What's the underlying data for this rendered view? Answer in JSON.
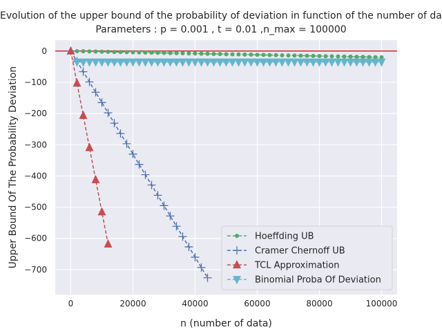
{
  "chart_data": {
    "type": "line",
    "title_line1": "Evolution of the upper bound of the probability of deviation in function of the number of data",
    "title_line2": "Parameters : p =  0.001 , t = 0.01 ,n_max = 100000",
    "xlabel": "n (number of data)",
    "ylabel": "Upper Bound Of The Probability Deviation",
    "xlim": [
      -5000,
      105000
    ],
    "ylim": [
      -780,
      35
    ],
    "x_ticks": [
      0,
      20000,
      40000,
      60000,
      80000,
      100000
    ],
    "y_ticks": [
      0,
      -100,
      -200,
      -300,
      -400,
      -500,
      -600,
      -700
    ],
    "grid": true,
    "legend_position": "lower-right",
    "reference_line": {
      "y": 0,
      "color": "#d62728"
    },
    "series": [
      {
        "name": "Hoeffding UB",
        "color": "#55a868",
        "marker": "dot",
        "points": [
          [
            0,
            0
          ],
          [
            2000,
            -0.4
          ],
          [
            4000,
            -0.8
          ],
          [
            6000,
            -1.2
          ],
          [
            8000,
            -1.6
          ],
          [
            10000,
            -2
          ],
          [
            12000,
            -2.4
          ],
          [
            14000,
            -2.8
          ],
          [
            16000,
            -3.2
          ],
          [
            18000,
            -3.6
          ],
          [
            20000,
            -4
          ],
          [
            22000,
            -4.4
          ],
          [
            24000,
            -4.8
          ],
          [
            26000,
            -5.2
          ],
          [
            28000,
            -5.6
          ],
          [
            30000,
            -6
          ],
          [
            32000,
            -6.4
          ],
          [
            34000,
            -6.8
          ],
          [
            36000,
            -7.2
          ],
          [
            38000,
            -7.6
          ],
          [
            40000,
            -8
          ],
          [
            42000,
            -8.4
          ],
          [
            44000,
            -8.8
          ],
          [
            46000,
            -9.2
          ],
          [
            48000,
            -9.6
          ],
          [
            50000,
            -10
          ],
          [
            52000,
            -10.4
          ],
          [
            54000,
            -10.8
          ],
          [
            56000,
            -11.2
          ],
          [
            58000,
            -11.6
          ],
          [
            60000,
            -12
          ],
          [
            62000,
            -12.4
          ],
          [
            64000,
            -12.8
          ],
          [
            66000,
            -13.2
          ],
          [
            68000,
            -13.6
          ],
          [
            70000,
            -14
          ],
          [
            72000,
            -14.4
          ],
          [
            74000,
            -14.8
          ],
          [
            76000,
            -15.2
          ],
          [
            78000,
            -15.6
          ],
          [
            80000,
            -16
          ],
          [
            82000,
            -16.4
          ],
          [
            84000,
            -16.8
          ],
          [
            86000,
            -17.2
          ],
          [
            88000,
            -17.6
          ],
          [
            90000,
            -18
          ],
          [
            92000,
            -18.4
          ],
          [
            94000,
            -18.8
          ],
          [
            96000,
            -19.2
          ],
          [
            98000,
            -19.6
          ],
          [
            100000,
            -20
          ]
        ]
      },
      {
        "name": "Cramer Chernoff UB",
        "color": "#4c72b0",
        "marker": "plus",
        "points": [
          [
            0,
            0
          ],
          [
            2000,
            -33
          ],
          [
            4000,
            -66
          ],
          [
            6000,
            -99
          ],
          [
            8000,
            -132
          ],
          [
            10000,
            -165
          ],
          [
            12000,
            -198
          ],
          [
            14000,
            -231
          ],
          [
            16000,
            -264
          ],
          [
            18000,
            -297
          ],
          [
            20000,
            -330
          ],
          [
            22000,
            -363
          ],
          [
            24000,
            -396
          ],
          [
            26000,
            -429
          ],
          [
            28000,
            -462
          ],
          [
            30000,
            -495
          ],
          [
            32000,
            -528
          ],
          [
            34000,
            -561
          ],
          [
            36000,
            -594
          ],
          [
            38000,
            -627
          ],
          [
            40000,
            -660
          ],
          [
            42000,
            -693
          ],
          [
            44000,
            -726
          ]
        ]
      },
      {
        "name": "TCL Approximation",
        "color": "#c44e52",
        "marker": "triangle-up",
        "points": [
          [
            0,
            0
          ],
          [
            2000,
            -103
          ],
          [
            4000,
            -206
          ],
          [
            6000,
            -309
          ],
          [
            8000,
            -412
          ],
          [
            10000,
            -515
          ],
          [
            12000,
            -618
          ]
        ]
      },
      {
        "name": "Binomial Proba Of Deviation",
        "color": "#64b5cd",
        "marker": "triangle-down",
        "points": [
          [
            2000,
            -35
          ],
          [
            4000,
            -35
          ],
          [
            6000,
            -35
          ],
          [
            8000,
            -35
          ],
          [
            10000,
            -35
          ],
          [
            12000,
            -35
          ],
          [
            14000,
            -35
          ],
          [
            16000,
            -35
          ],
          [
            18000,
            -35
          ],
          [
            20000,
            -35
          ],
          [
            22000,
            -35
          ],
          [
            24000,
            -35
          ],
          [
            26000,
            -35
          ],
          [
            28000,
            -35
          ],
          [
            30000,
            -35
          ],
          [
            32000,
            -35
          ],
          [
            34000,
            -35
          ],
          [
            36000,
            -35
          ],
          [
            38000,
            -35
          ],
          [
            40000,
            -35
          ],
          [
            42000,
            -35
          ],
          [
            44000,
            -35
          ],
          [
            46000,
            -35
          ],
          [
            48000,
            -35
          ],
          [
            50000,
            -35
          ],
          [
            52000,
            -35
          ],
          [
            54000,
            -35
          ],
          [
            56000,
            -35
          ],
          [
            58000,
            -35
          ],
          [
            60000,
            -35
          ],
          [
            62000,
            -35
          ],
          [
            64000,
            -35
          ],
          [
            66000,
            -35
          ],
          [
            68000,
            -35
          ],
          [
            70000,
            -35
          ],
          [
            72000,
            -35
          ],
          [
            74000,
            -35
          ],
          [
            76000,
            -35
          ],
          [
            78000,
            -35
          ],
          [
            80000,
            -35
          ],
          [
            82000,
            -35
          ],
          [
            84000,
            -35
          ],
          [
            86000,
            -35
          ],
          [
            88000,
            -35
          ],
          [
            90000,
            -35
          ],
          [
            92000,
            -35
          ],
          [
            94000,
            -35
          ],
          [
            96000,
            -35
          ],
          [
            98000,
            -35
          ],
          [
            100000,
            -35
          ]
        ]
      }
    ]
  }
}
